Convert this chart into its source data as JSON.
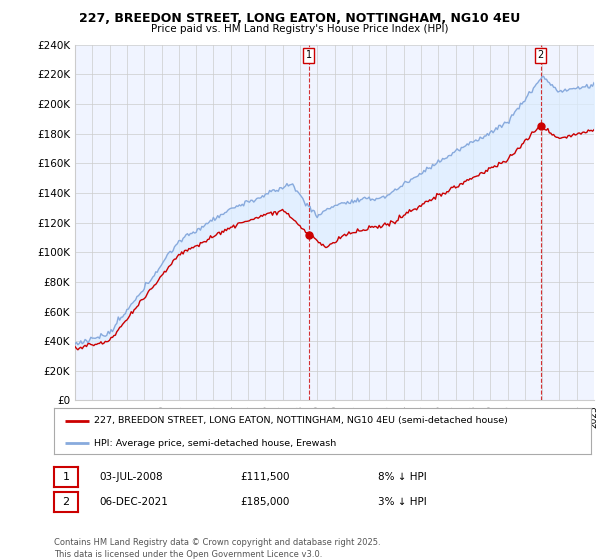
{
  "title": "227, BREEDON STREET, LONG EATON, NOTTINGHAM, NG10 4EU",
  "subtitle": "Price paid vs. HM Land Registry's House Price Index (HPI)",
  "ylim": [
    0,
    240000
  ],
  "yticks": [
    0,
    20000,
    40000,
    60000,
    80000,
    100000,
    120000,
    140000,
    160000,
    180000,
    200000,
    220000,
    240000
  ],
  "ytick_labels": [
    "£0",
    "£20K",
    "£40K",
    "£60K",
    "£80K",
    "£100K",
    "£120K",
    "£140K",
    "£160K",
    "£180K",
    "£200K",
    "£220K",
    "£240K"
  ],
  "legend_line1": "227, BREEDON STREET, LONG EATON, NOTTINGHAM, NG10 4EU (semi-detached house)",
  "legend_line2": "HPI: Average price, semi-detached house, Erewash",
  "annotation1_label": "1",
  "annotation1_date": "03-JUL-2008",
  "annotation1_price": "£111,500",
  "annotation1_hpi": "8% ↓ HPI",
  "annotation2_label": "2",
  "annotation2_date": "06-DEC-2021",
  "annotation2_price": "£185,000",
  "annotation2_hpi": "3% ↓ HPI",
  "footer": "Contains HM Land Registry data © Crown copyright and database right 2025.\nThis data is licensed under the Open Government Licence v3.0.",
  "line_color_actual": "#cc0000",
  "line_color_hpi": "#88aadd",
  "fill_color_hpi": "#ddeeff",
  "background_color": "#ffffff",
  "plot_bg_color": "#f0f4ff",
  "grid_color": "#cccccc",
  "sale1_x": 2008.5,
  "sale1_y": 111500,
  "sale2_x": 2021.92,
  "sale2_y": 185000,
  "xmin": 1995,
  "xmax": 2025
}
